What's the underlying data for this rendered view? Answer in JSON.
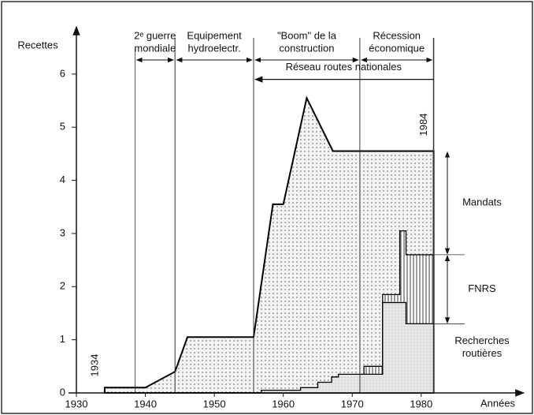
{
  "chart_data": {
    "type": "area",
    "y_label": "Recettes",
    "x_label": "Années",
    "xlim": [
      1930,
      1994.3
    ],
    "ylim": [
      0,
      6.8
    ],
    "xticks": [
      1930,
      1940,
      1950,
      1960,
      1970,
      1980
    ],
    "yticks": [
      0,
      1,
      2,
      3,
      4,
      5,
      6
    ],
    "annotations": [
      {
        "label": "1934",
        "x": 1934.1
      },
      {
        "label": "1984",
        "x": 1981.8
      }
    ],
    "periods": [
      {
        "label": [
          "2ᵉ guerre",
          "mondiale"
        ],
        "start": 1938.5,
        "end": 1944.3
      },
      {
        "label": [
          "Equipement",
          "hydroelectr."
        ],
        "start": 1944.3,
        "end": 1955.7
      },
      {
        "label": [
          "\"Boom\" de la",
          "construction"
        ],
        "start": 1955.7,
        "end": 1971.1
      },
      {
        "label": [
          "Récession",
          "économique"
        ],
        "start": 1971.1,
        "end": 1981.8
      }
    ],
    "network": {
      "label": "Réseau routes nationales",
      "start": 1955.7,
      "end": 1981.8,
      "y": 5.9
    },
    "series": [
      {
        "name": [
          "Mandats"
        ],
        "pattern": "dots",
        "color": "#000000",
        "x": [
          1934.1,
          1934.1,
          1940,
          1944.3,
          1946.1,
          1955.7,
          1958.5,
          1960,
          1963.4,
          1967.2,
          1981.8,
          1981.8
        ],
        "values": [
          0,
          0.1,
          0.1,
          0.4,
          1.05,
          1.05,
          3.55,
          3.55,
          5.55,
          4.55,
          4.55,
          0
        ]
      },
      {
        "name": [
          "FNRS"
        ],
        "pattern": "vlines",
        "color": "#000000",
        "x": [
          1971.7,
          1971.7,
          1974.4,
          1974.4,
          1976.9,
          1976.9,
          1977.8,
          1977.8,
          1981.8,
          1981.8
        ],
        "values": [
          0,
          0.5,
          0.5,
          1.85,
          1.85,
          3.05,
          3.05,
          2.6,
          2.6,
          0
        ]
      },
      {
        "name": [
          "Recherches",
          "routières"
        ],
        "pattern": "light",
        "color": "#000000",
        "x": [
          1956.8,
          1956.8,
          1962.5,
          1962.5,
          1965,
          1965,
          1967,
          1967,
          1968,
          1968,
          1974.4,
          1974.4,
          1977.8,
          1977.8,
          1981.8,
          1981.8
        ],
        "values": [
          0,
          0.05,
          0.05,
          0.1,
          0.1,
          0.2,
          0.2,
          0.3,
          0.3,
          0.35,
          0.35,
          1.7,
          1.7,
          1.3,
          1.3,
          0
        ]
      }
    ]
  }
}
